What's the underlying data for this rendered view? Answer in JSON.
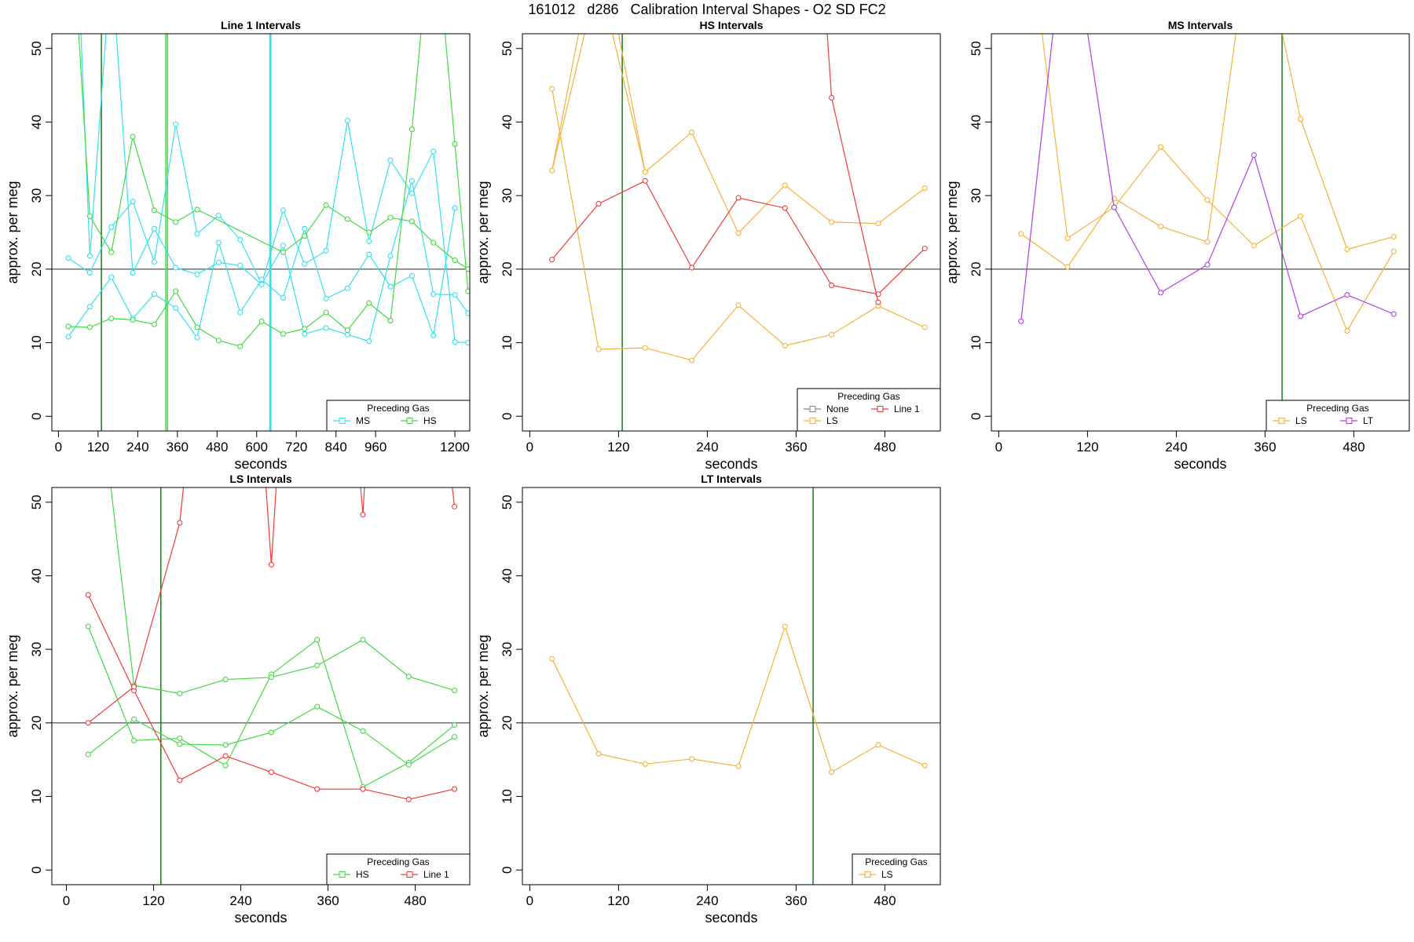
{
  "title": "161012   d286   Calibration Interval Shapes - O2 SD FC2",
  "colors": {
    "MS": "#33E1F1",
    "HS": "#44D944",
    "LS": "#F5B23A",
    "LT": "#B33EE8",
    "Line 1": "#F03C3C",
    "None": "#888888",
    "vline": "#1B7A1B",
    "refline": "#555555"
  },
  "chart_data": [
    {
      "type": "line",
      "title": "Line 1 Intervals",
      "xlabel": "seconds",
      "ylabel": "approx. per meg",
      "xlim": [
        -20,
        1245
      ],
      "ylim": [
        -2,
        52
      ],
      "xticks": [
        0,
        120,
        240,
        360,
        480,
        600,
        720,
        840,
        960,
        1200
      ],
      "yticks": [
        0,
        10,
        20,
        30,
        40,
        50
      ],
      "hline": 20,
      "legend": {
        "title": "Preceding Gas",
        "position": "bottom-right",
        "entries": [
          [
            "MS",
            "HS"
          ]
        ]
      },
      "vlines": [
        {
          "x": 130,
          "color": "vline"
        },
        {
          "x": 325,
          "color": "HS"
        },
        {
          "x": 330,
          "color": "HS"
        },
        {
          "x": 640,
          "color": "MS"
        },
        {
          "x": 643,
          "color": "MS"
        }
      ],
      "series": [
        {
          "color": "MS",
          "x": [
            30,
            95,
            160,
            225,
            290,
            355,
            420,
            485,
            550,
            615,
            680,
            745,
            810,
            875,
            940,
            1005,
            1070,
            1135,
            1200,
            1240
          ],
          "y": [
            21.5,
            19.5,
            25.7,
            29.2,
            21.0,
            39.7,
            24.8,
            27.3,
            24.0,
            18.0,
            28.0,
            20.7,
            22.5,
            40.2,
            23.8,
            34.8,
            30.3,
            36.0,
            10.1,
            10.0
          ]
        },
        {
          "color": "MS",
          "x": [
            30,
            95,
            160,
            225,
            290,
            355,
            420,
            485,
            550,
            615,
            680,
            745,
            810,
            875,
            940,
            1005,
            1070,
            1135,
            1200
          ],
          "y": [
            10.8,
            14.9,
            18.9,
            13.3,
            16.6,
            14.7,
            10.7,
            23.6,
            14.1,
            18.6,
            16.1,
            25.5,
            16.0,
            17.4,
            22.0,
            17.6,
            19.1,
            11.0,
            28.3
          ]
        },
        {
          "color": "MS",
          "x": [
            30,
            95,
            160,
            225,
            290,
            355,
            420,
            485,
            550,
            615,
            680,
            745,
            810,
            875,
            940,
            1005,
            1070,
            1135,
            1200,
            1240
          ],
          "y": [
            95,
            21.8,
            62,
            19.5,
            25.5,
            20.2,
            19.3,
            20.9,
            20.5,
            17.9,
            23.2,
            11.2,
            12.0,
            11.1,
            10.2,
            21.8,
            32.0,
            16.6,
            16.5,
            14.0
          ]
        },
        {
          "color": "HS",
          "x": [
            30,
            95,
            160,
            225,
            290,
            355,
            420,
            485,
            550,
            615,
            680,
            745,
            810,
            875,
            940,
            1005,
            1070,
            1135,
            1200,
            1240
          ],
          "y": [
            12.2,
            12.1,
            13.3,
            13.1,
            12.5,
            17.0,
            12.1,
            10.3,
            9.5,
            12.9,
            11.2,
            11.9,
            14.1,
            11.7,
            15.4,
            13.0,
            39.0,
            70,
            37.0,
            17.0
          ]
        },
        {
          "color": "HS",
          "x": [
            30,
            95,
            160,
            225,
            290,
            355,
            420,
            680,
            745,
            810,
            875,
            940,
            1005,
            1070,
            1135,
            1200,
            1240
          ],
          "y": [
            75,
            27.2,
            22.3,
            38.0,
            28.0,
            26.4,
            28.1,
            22.3,
            24.5,
            28.7,
            26.8,
            25.0,
            27.0,
            26.5,
            23.6,
            21.2,
            20.0
          ]
        }
      ]
    },
    {
      "type": "line",
      "title": "HS Intervals",
      "xlabel": "seconds",
      "ylabel": "approx. per meg",
      "xlim": [
        -10,
        555
      ],
      "ylim": [
        -2,
        52
      ],
      "xticks": [
        0,
        120,
        240,
        360,
        480
      ],
      "yticks": [
        0,
        10,
        20,
        30,
        40,
        50
      ],
      "hline": 20,
      "legend": {
        "title": "Preceding Gas",
        "position": "bottom-right",
        "entries": [
          [
            "None",
            "Line 1"
          ],
          [
            "LS"
          ]
        ]
      },
      "vlines": [
        {
          "x": 125,
          "color": "vline"
        }
      ],
      "series": [
        {
          "color": "LS",
          "x": [
            30,
            93,
            156,
            219,
            282,
            345,
            408,
            471,
            534
          ],
          "y": [
            44.5,
            9.1,
            9.3,
            7.6,
            15.1,
            9.6,
            11.1,
            15.0,
            12.1
          ]
        },
        {
          "color": "LS",
          "x": [
            30,
            93,
            156,
            219,
            282,
            345,
            408,
            471,
            534
          ],
          "y": [
            33.4,
            66,
            33.2,
            38.6,
            24.9,
            31.4,
            26.4,
            26.2,
            31.0
          ]
        },
        {
          "color": "LS",
          "x": [
            30,
            93,
            156
          ],
          "y": [
            33.4,
            60,
            33.2
          ]
        },
        {
          "color": "Line 1",
          "x": [
            30,
            93,
            156,
            219,
            282,
            345,
            408,
            471,
            534
          ],
          "y": [
            21.3,
            28.9,
            32.0,
            20.2,
            29.7,
            28.3,
            17.8,
            16.6,
            22.8
          ]
        },
        {
          "color": "Line 1",
          "x": [
            390,
            408,
            471
          ],
          "y": [
            70,
            43.3,
            15.5
          ]
        }
      ]
    },
    {
      "type": "line",
      "title": "MS Intervals",
      "xlabel": "seconds",
      "ylabel": "approx. per meg",
      "xlim": [
        -10,
        555
      ],
      "ylim": [
        -2,
        52
      ],
      "xticks": [
        0,
        120,
        240,
        360,
        480
      ],
      "yticks": [
        0,
        10,
        20,
        30,
        40,
        50
      ],
      "hline": 20,
      "legend": {
        "title": "Preceding Gas",
        "position": "bottom-right",
        "entries": [
          [
            "LS",
            "LT"
          ]
        ]
      },
      "vlines": [
        {
          "x": 383,
          "color": "vline"
        }
      ],
      "series": [
        {
          "color": "LS",
          "x": [
            30,
            93,
            156,
            219,
            282,
            345,
            408,
            471,
            534
          ],
          "y": [
            24.8,
            20.3,
            29.6,
            25.8,
            23.7,
            70,
            40.4,
            22.7,
            24.4
          ]
        },
        {
          "color": "LS",
          "x": [
            30,
            93,
            156,
            219,
            282,
            345,
            408,
            471,
            534
          ],
          "y": [
            75,
            24.2,
            28.4,
            36.6,
            29.4,
            23.2,
            27.2,
            11.6,
            22.4
          ]
        },
        {
          "color": "LT",
          "x": [
            30,
            93,
            156,
            219,
            282,
            345,
            408,
            471,
            534
          ],
          "y": [
            12.9,
            70,
            28.4,
            16.8,
            20.6,
            35.5,
            13.6,
            16.5,
            13.9
          ]
        }
      ]
    },
    {
      "type": "line",
      "title": "LS Intervals",
      "xlabel": "seconds",
      "ylabel": "approx. per meg",
      "xlim": [
        -20,
        555
      ],
      "ylim": [
        -2,
        52
      ],
      "xticks": [
        0,
        120,
        240,
        360,
        480
      ],
      "yticks": [
        0,
        10,
        20,
        30,
        40,
        50
      ],
      "hline": 20,
      "legend": {
        "title": "Preceding Gas",
        "position": "bottom-right",
        "entries": [
          [
            "HS",
            "Line 1"
          ]
        ]
      },
      "vlines": [
        {
          "x": 130,
          "color": "vline"
        }
      ],
      "series": [
        {
          "color": "HS",
          "x": [
            30,
            93,
            156,
            219,
            282,
            345,
            408,
            471,
            534
          ],
          "y": [
            33.1,
            17.6,
            17.9,
            14.2,
            26.6,
            31.3,
            11.3,
            14.6,
            19.7
          ]
        },
        {
          "color": "HS",
          "x": [
            30,
            93,
            156,
            219,
            282,
            345,
            408,
            471,
            534
          ],
          "y": [
            15.7,
            20.5,
            17.1,
            17.0,
            18.7,
            22.2,
            18.9,
            14.3,
            18.1
          ]
        },
        {
          "color": "HS",
          "x": [
            40,
            93,
            156,
            219,
            282,
            345,
            408,
            471,
            534
          ],
          "y": [
            70,
            25.1,
            24.0,
            25.9,
            26.2,
            27.8,
            31.3,
            26.3,
            24.4
          ]
        },
        {
          "color": "Line 1",
          "x": [
            30,
            93,
            156,
            219,
            282,
            345,
            408,
            471,
            534
          ],
          "y": [
            37.4,
            24.4,
            12.2,
            15.5,
            13.3,
            11.0,
            11.0,
            9.6,
            11.0
          ]
        },
        {
          "color": "Line 1",
          "x": [
            30,
            93,
            156,
            180
          ],
          "y": [
            20.0,
            24.9,
            47.2,
            70
          ]
        },
        {
          "color": "Line 1",
          "x": [
            262,
            282,
            300
          ],
          "y": [
            70,
            41.5,
            70
          ]
        },
        {
          "color": "Line 1",
          "x": [
            390,
            408,
            420
          ],
          "y": [
            70,
            48.3,
            70
          ]
        },
        {
          "color": "Line 1",
          "x": [
            510,
            534
          ],
          "y": [
            70,
            49.4
          ]
        }
      ]
    },
    {
      "type": "line",
      "title": "LT Intervals",
      "xlabel": "seconds",
      "ylabel": "approx. per meg",
      "xlim": [
        -10,
        555
      ],
      "ylim": [
        -2,
        52
      ],
      "xticks": [
        0,
        120,
        240,
        360,
        480
      ],
      "yticks": [
        0,
        10,
        20,
        30,
        40,
        50
      ],
      "hline": 20,
      "legend": {
        "title": "Preceding Gas",
        "position": "bottom-right",
        "entries": [
          [
            "LS"
          ]
        ]
      },
      "vlines": [
        {
          "x": 383,
          "color": "vline"
        }
      ],
      "series": [
        {
          "color": "LS",
          "x": [
            30,
            93,
            156,
            219,
            282,
            345,
            408,
            471,
            534
          ],
          "y": [
            28.7,
            15.8,
            14.4,
            15.1,
            14.1,
            33.1,
            13.3,
            17.0,
            14.2
          ]
        }
      ]
    }
  ]
}
